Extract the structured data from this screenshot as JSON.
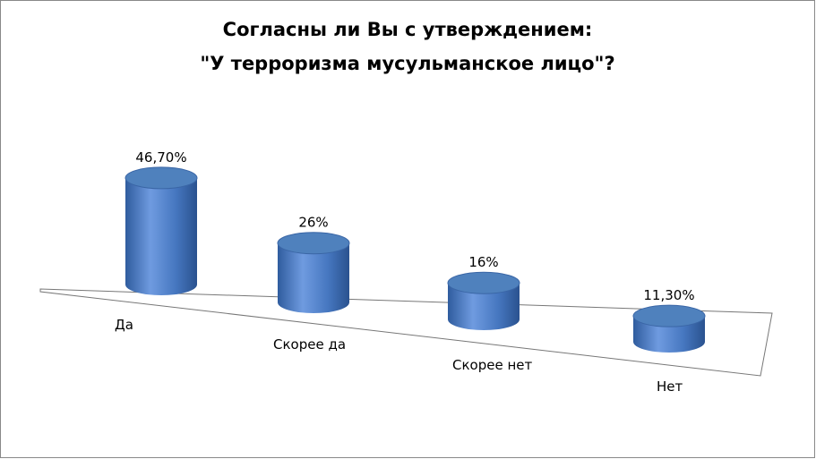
{
  "chart_data": {
    "type": "bar3d",
    "title": [
      "Согласны ли Вы с утверждением:",
      "\"У терроризма мусульманское лицо\"?"
    ],
    "categories": [
      "Да",
      "Скорее да",
      "Скорее нет",
      "Нет"
    ],
    "values": [
      46.7,
      26,
      16,
      11.3
    ],
    "value_labels": [
      "46,70%",
      "26%",
      "16%",
      "11,30%"
    ],
    "color": "#4f81bd"
  }
}
